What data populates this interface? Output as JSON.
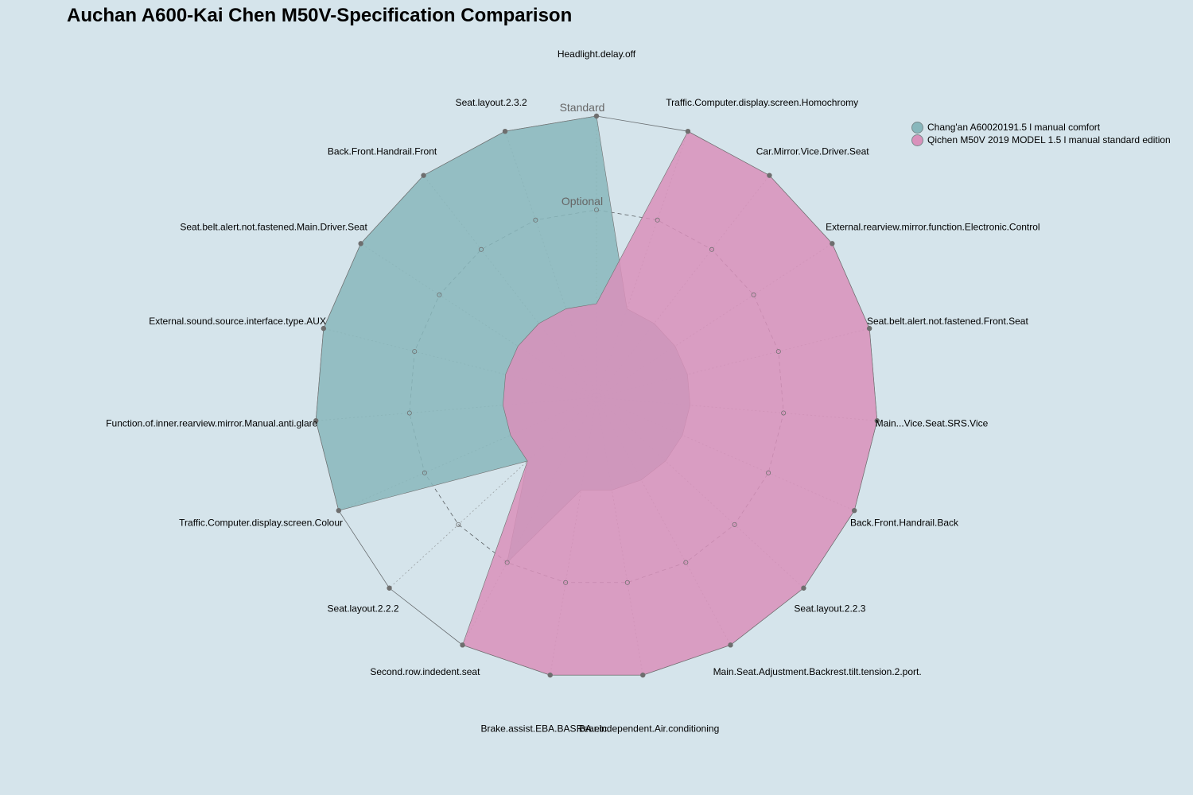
{
  "chart_data": {
    "type": "radar",
    "title": "Auchan A600-Kai Chen M50V-Specification Comparison",
    "levels": [
      "Optional",
      "Standard"
    ],
    "scale_max": 3,
    "axes": [
      "Headlight.delay.off",
      "Traffic.Computer.display.screen.Homochromy",
      "Car.Mirror.Vice.Driver.Seat",
      "External.rearview.mirror.function.Electronic.Control",
      "Seat.belt.alert.not.fastened.Front.Seat",
      "Main...Vice.Seat.SRS.Vice",
      "Back.Front.Handrail.Back",
      "Seat.layout.2.2.3",
      "Main.Seat.Adjustment.Backrest.tilt.tension.2.port.",
      "Rear.independent.Air.conditioning",
      "Brake.assist.EBA.BAS.BA.etc.",
      "Second.row.indedent.seat",
      "Seat.layout.2.2.2",
      "Traffic.Computer.display.screen.Colour",
      "Function.of.inner.rearview.mirror.Manual.anti.glare",
      "External.sound.source.interface.type.AUX",
      "Seat.belt.alert.not.fastened.Main.Driver.Seat",
      "Back.Front.Handrail.Front",
      "Seat.layout.2.3.2"
    ],
    "series": [
      {
        "name": "Chang'an A60020191.5 l manual comfort",
        "color": "#88b7bc",
        "values": [
          3,
          1,
          1,
          1,
          1,
          1,
          1,
          1,
          1,
          1,
          1,
          2,
          1,
          3,
          3,
          3,
          3,
          3,
          3
        ]
      },
      {
        "name": "Qichen M50V 2019 MODEL 1.5 l manual standard edition",
        "color": "#d991bb",
        "values": [
          1,
          3,
          3,
          3,
          3,
          3,
          3,
          3,
          3,
          3,
          3,
          3,
          1,
          1,
          1,
          1,
          1,
          1,
          1
        ]
      }
    ],
    "legend_position": "top-right",
    "grid": true
  }
}
